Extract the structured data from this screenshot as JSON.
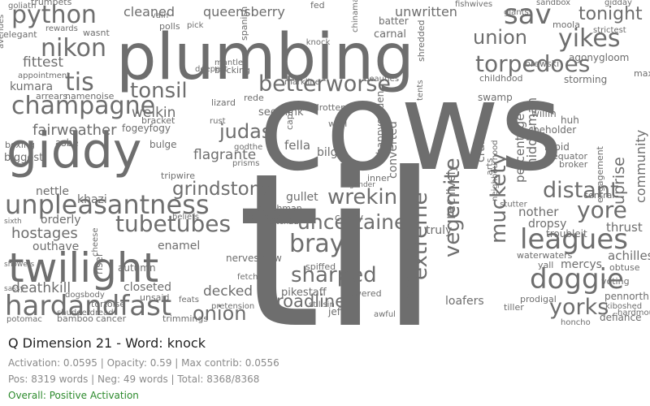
{
  "cloud": {
    "text_color": "#6e6e6e",
    "words": [
      "cows",
      "til",
      "plumbing",
      "twilight",
      "giddy",
      "hardandfast",
      "unpleasantness",
      "champagne",
      "doggie",
      "yorks",
      "sav",
      "tis",
      "nikon",
      "python",
      "yikes",
      "union",
      "torpedoes",
      "tonight",
      "leagues",
      "sharped",
      "wrekin",
      "bray",
      "tubetubes",
      "tonsil",
      "betterworse",
      "uncertaine",
      "extreme",
      "vegemite",
      "muckety",
      "distant",
      "yore",
      "grindstone",
      "deathkill",
      "onion",
      "roadline",
      "judas",
      "fairweather",
      "queensberry",
      "cleaned",
      "unwritten",
      "community",
      "uprise",
      "hostages",
      "fittest",
      "kumara",
      "welkin",
      "decked",
      "closeted",
      "flagrante",
      "fella",
      "bilge",
      "brotherly",
      "truly",
      "crabs",
      "rec",
      "lively",
      "converted",
      "percentage",
      "happygolden",
      "carnal",
      "fogeyfogy",
      "bracket",
      "namenoise",
      "arrears",
      "boxing",
      "biggest",
      "asbe",
      "nettle",
      "khazi",
      "orderly",
      "outhave",
      "sixth",
      "showers",
      "sassy",
      "enamel",
      "tripwire",
      "bulge",
      "gullet",
      "inner",
      "gender",
      "cushy",
      "spiffed",
      "lowered",
      "pikestaff",
      "jeff",
      "loafers",
      "achilles",
      "mercys",
      "thrust",
      "nother",
      "dropsy",
      "troubleit",
      "middleman",
      "engagement",
      "rapid",
      "equator",
      "broker",
      "beholder",
      "willin",
      "huh",
      "swamp",
      "childhood",
      "storming",
      "max",
      "brewski",
      "agonygloom",
      "moola",
      "strictest",
      "pennorth",
      "defiance",
      "tiller",
      "prodigal",
      "honcho",
      "obtuse",
      "voting",
      "cancer",
      "trimmings",
      "potomac",
      "bamboo",
      "tortoise",
      "unsaid",
      "pretension",
      "nervesinew",
      "autumn",
      "riser",
      "cheese",
      "seethink",
      "rede",
      "lizard",
      "rust",
      "badrotten",
      "worl",
      "capful",
      "bricking",
      "mantle",
      "markline",
      "beauties",
      "arts",
      "neighbourhood",
      "waterwaters",
      "central",
      "trumpets",
      "goliath",
      "elegant",
      "wasnt",
      "polls",
      "vain",
      "pick",
      "fed",
      "batter",
      "chinamans",
      "tents",
      "shredded",
      "avenues",
      "appointment",
      "rewards",
      "spanish",
      "deepest",
      "fetch",
      "dutchman",
      "catch22",
      "prisms",
      "godthe",
      "awful",
      "gidday",
      "giants",
      "fishwives",
      "sandbox",
      "shudderdread",
      "dogsbody",
      "feats",
      "halfnelson",
      "beliefs",
      "stillsin",
      "kiboshed",
      "hardmouth",
      "yall",
      "stutter",
      "knock"
    ]
  },
  "header": {
    "title": "Q Dimension 21 - Word: knock"
  },
  "stats": {
    "activation_line": "Activation: 0.0595 | Opacity: 0.59 | Max contrib: 0.0556",
    "counts_line": "Pos: 8319 words | Neg: 49 words | Total: 8368/8368"
  },
  "status": {
    "text": "Overall: Positive Activation",
    "color": "#2c8a2c"
  }
}
